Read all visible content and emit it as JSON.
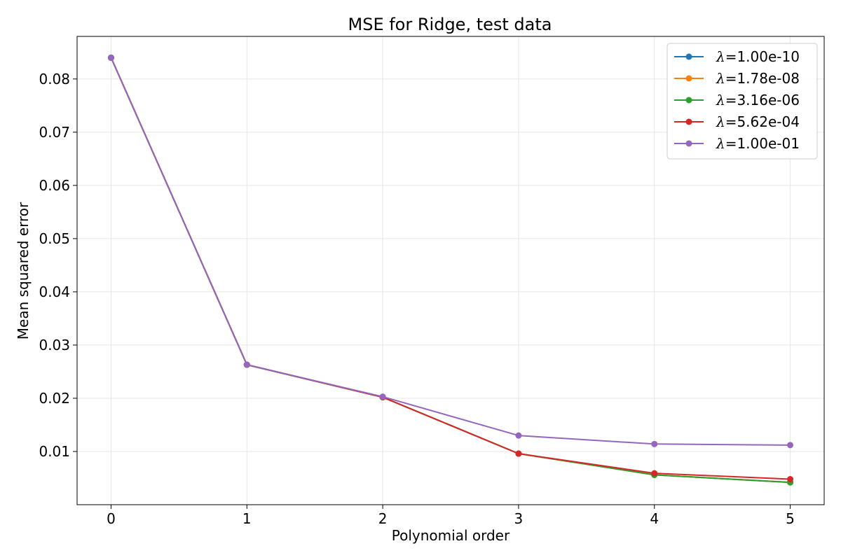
{
  "chart_data": {
    "type": "line",
    "title": "MSE for Ridge, test data",
    "xlabel": "Polynomial order",
    "ylabel": "Mean squared error",
    "x": [
      0,
      1,
      2,
      3,
      4,
      5
    ],
    "xlim": [
      -0.25,
      5.25
    ],
    "ylim": [
      0.0,
      0.088
    ],
    "xticks": [
      "0",
      "1",
      "2",
      "3",
      "4",
      "5"
    ],
    "yticks": [
      0.01,
      0.02,
      0.03,
      0.04,
      0.05,
      0.06,
      0.07,
      0.08
    ],
    "ytick_labels": [
      "0.01",
      "0.02",
      "0.03",
      "0.04",
      "0.05",
      "0.06",
      "0.07",
      "0.08"
    ],
    "grid": true,
    "legend_position": "top-right",
    "series": [
      {
        "name": "=1.00e-10",
        "symbol": "λ",
        "color": "#1f77b4",
        "values": [
          0.084,
          0.0263,
          0.0202,
          0.0096,
          0.0056,
          0.0042
        ]
      },
      {
        "name": "=1.78e-08",
        "symbol": "λ",
        "color": "#ff7f0e",
        "values": [
          0.084,
          0.0263,
          0.0202,
          0.0096,
          0.0056,
          0.0042
        ]
      },
      {
        "name": "=3.16e-06",
        "symbol": "λ",
        "color": "#2ca02c",
        "values": [
          0.084,
          0.0263,
          0.0202,
          0.0096,
          0.0056,
          0.0042
        ]
      },
      {
        "name": "=5.62e-04",
        "symbol": "λ",
        "color": "#d62728",
        "values": [
          0.084,
          0.0263,
          0.0202,
          0.0096,
          0.0059,
          0.0048
        ]
      },
      {
        "name": "=1.00e-01",
        "symbol": "λ",
        "color": "#9467bd",
        "values": [
          0.084,
          0.0263,
          0.0203,
          0.013,
          0.0114,
          0.0112
        ]
      }
    ]
  }
}
